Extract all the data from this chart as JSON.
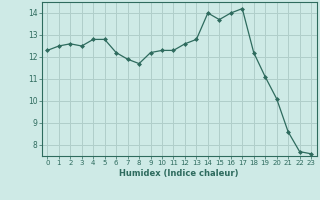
{
  "x": [
    0,
    1,
    2,
    3,
    4,
    5,
    6,
    7,
    8,
    9,
    10,
    11,
    12,
    13,
    14,
    15,
    16,
    17,
    18,
    19,
    20,
    21,
    22,
    23
  ],
  "y": [
    12.3,
    12.5,
    12.6,
    12.5,
    12.8,
    12.8,
    12.2,
    11.9,
    11.7,
    12.2,
    12.3,
    12.3,
    12.6,
    12.8,
    14.0,
    13.7,
    14.0,
    14.2,
    12.2,
    11.1,
    10.1,
    8.6,
    7.7,
    7.6
  ],
  "xlabel": "Humidex (Indice chaleur)",
  "ylim": [
    7.5,
    14.5
  ],
  "xlim": [
    -0.5,
    23.5
  ],
  "yticks": [
    8,
    9,
    10,
    11,
    12,
    13,
    14
  ],
  "xticks": [
    0,
    1,
    2,
    3,
    4,
    5,
    6,
    7,
    8,
    9,
    10,
    11,
    12,
    13,
    14,
    15,
    16,
    17,
    18,
    19,
    20,
    21,
    22,
    23
  ],
  "line_color": "#2e6b5e",
  "marker_color": "#2e6b5e",
  "bg_color": "#ceeae6",
  "grid_color": "#b0ceca",
  "tick_color": "#2e6b5e",
  "spine_color": "#2e6b5e"
}
